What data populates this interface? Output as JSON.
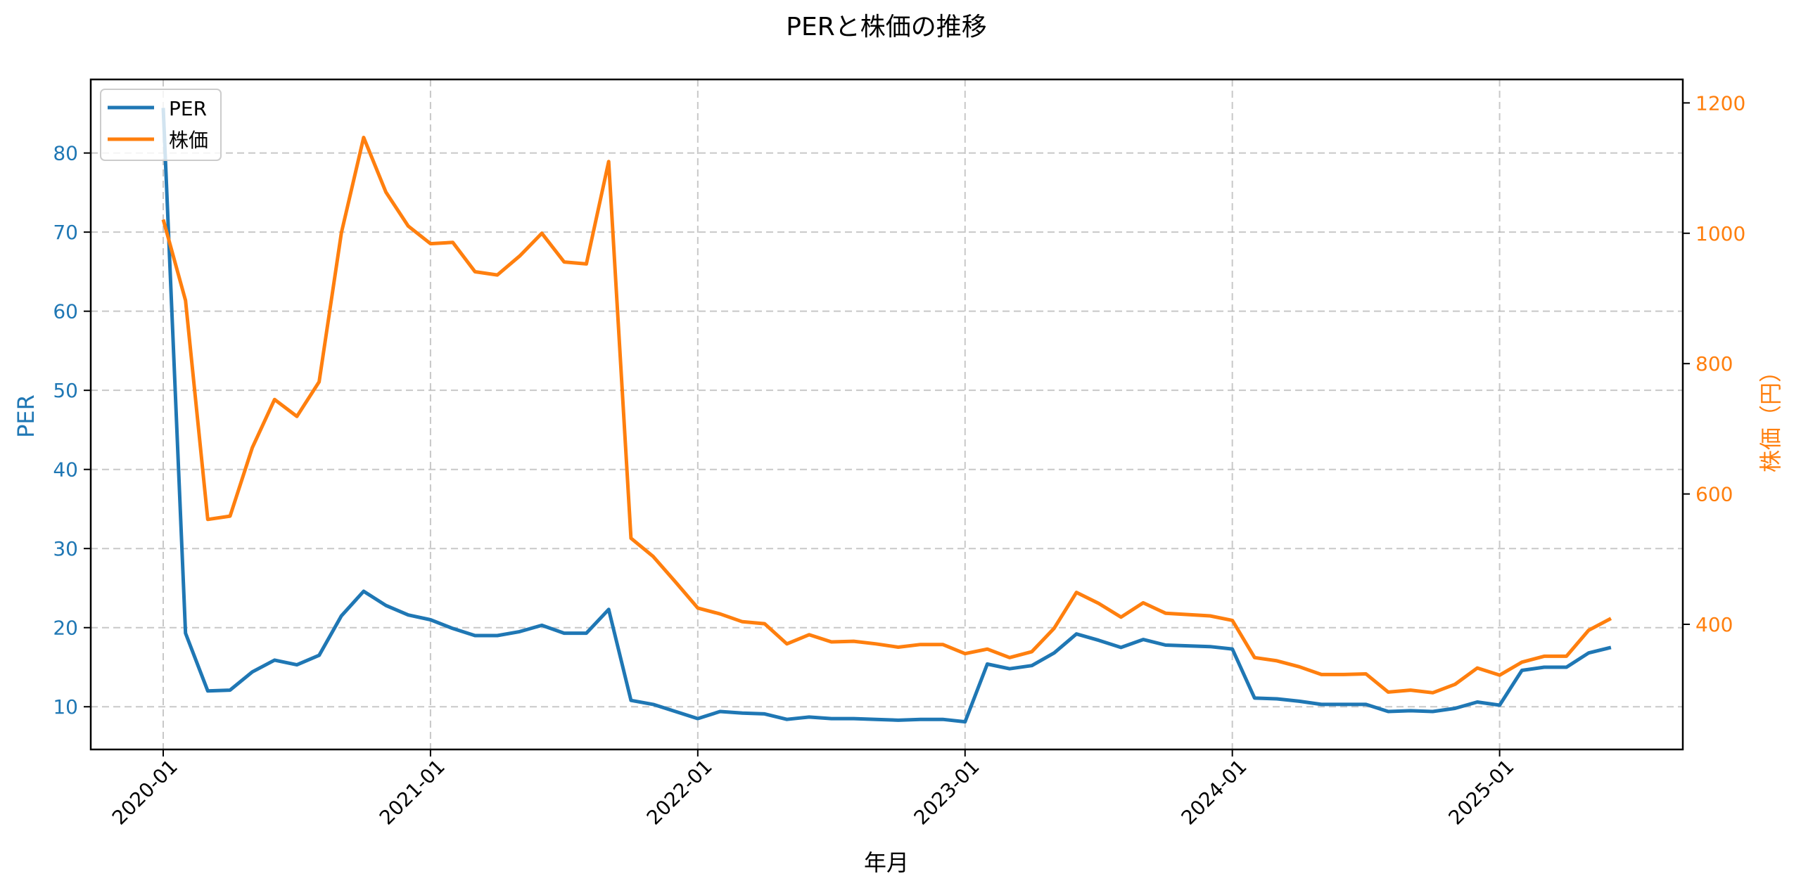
{
  "chart_data": {
    "type": "line",
    "title": "PERと株価の推移",
    "xlabel": "年月",
    "ylabel": "PER",
    "y2label": "株価（円）",
    "x_ticks": [
      "2020-01",
      "2021-01",
      "2022-01",
      "2023-01",
      "2024-01",
      "2025-01"
    ],
    "y_ticks": [
      10,
      20,
      30,
      40,
      50,
      60,
      70,
      80
    ],
    "y2_ticks": [
      400,
      600,
      800,
      1000,
      1200
    ],
    "ylim": [
      4.6,
      89.3
    ],
    "y2lim": [
      208,
      1236
    ],
    "grid": true,
    "legend_position": "upper left",
    "x": [
      "2020-01",
      "2020-02",
      "2020-03",
      "2020-04",
      "2020-05",
      "2020-06",
      "2020-07",
      "2020-08",
      "2020-09",
      "2020-10",
      "2020-11",
      "2020-12",
      "2021-01",
      "2021-02",
      "2021-03",
      "2021-04",
      "2021-05",
      "2021-06",
      "2021-07",
      "2021-08",
      "2021-09",
      "2021-10",
      "2021-11",
      "2021-12",
      "2022-01",
      "2022-02",
      "2022-03",
      "2022-04",
      "2022-05",
      "2022-06",
      "2022-07",
      "2022-08",
      "2022-09",
      "2022-10",
      "2022-11",
      "2022-12",
      "2023-01",
      "2023-02",
      "2023-03",
      "2023-04",
      "2023-05",
      "2023-06",
      "2023-07",
      "2023-08",
      "2023-09",
      "2023-10",
      "2023-11",
      "2023-12",
      "2024-01",
      "2024-02",
      "2024-03",
      "2024-04",
      "2024-05",
      "2024-06",
      "2024-07",
      "2024-08",
      "2024-09",
      "2024-10",
      "2024-11",
      "2024-12",
      "2025-01",
      "2025-02",
      "2025-03",
      "2025-04",
      "2025-05",
      "2025-06"
    ],
    "series": [
      {
        "name": "PER",
        "axis": "left",
        "color": "#1f77b4",
        "values": [
          85.7,
          19.3,
          12.0,
          12.1,
          14.4,
          15.9,
          15.3,
          16.5,
          21.5,
          24.6,
          22.8,
          21.6,
          21.0,
          19.9,
          19.0,
          19.0,
          19.5,
          20.3,
          19.3,
          19.3,
          22.3,
          10.8,
          10.3,
          9.4,
          8.5,
          9.4,
          9.2,
          9.1,
          8.4,
          8.7,
          8.5,
          8.5,
          8.4,
          8.3,
          8.4,
          8.4,
          8.1,
          15.4,
          14.8,
          15.2,
          16.8,
          19.2,
          18.4,
          17.5,
          18.5,
          17.8,
          17.7,
          17.6,
          17.3,
          11.1,
          11.0,
          10.7,
          10.3,
          10.3,
          10.3,
          9.4,
          9.5,
          9.4,
          9.8,
          10.6,
          10.2,
          14.6,
          15.0,
          15.0,
          16.8,
          17.5
        ]
      },
      {
        "name": "株価",
        "axis": "right",
        "color": "#ff7f0e",
        "values": [
          1021,
          897,
          561,
          566,
          671,
          745,
          719,
          772,
          1001,
          1147,
          1063,
          1011,
          984,
          986,
          941,
          936,
          965,
          1000,
          956,
          953,
          1110,
          532,
          504,
          465,
          425,
          416,
          404,
          401,
          370,
          384,
          373,
          374,
          370,
          365,
          369,
          369,
          355,
          362,
          349,
          358,
          394,
          449,
          432,
          411,
          433,
          417,
          415,
          413,
          406,
          349,
          344,
          335,
          323,
          323,
          324,
          296,
          299,
          295,
          308,
          333,
          322,
          342,
          351,
          351,
          391,
          409
        ]
      }
    ]
  },
  "legend": {
    "items": [
      {
        "label": "PER",
        "color": "#1f77b4"
      },
      {
        "label": "株価",
        "color": "#ff7f0e"
      }
    ]
  }
}
